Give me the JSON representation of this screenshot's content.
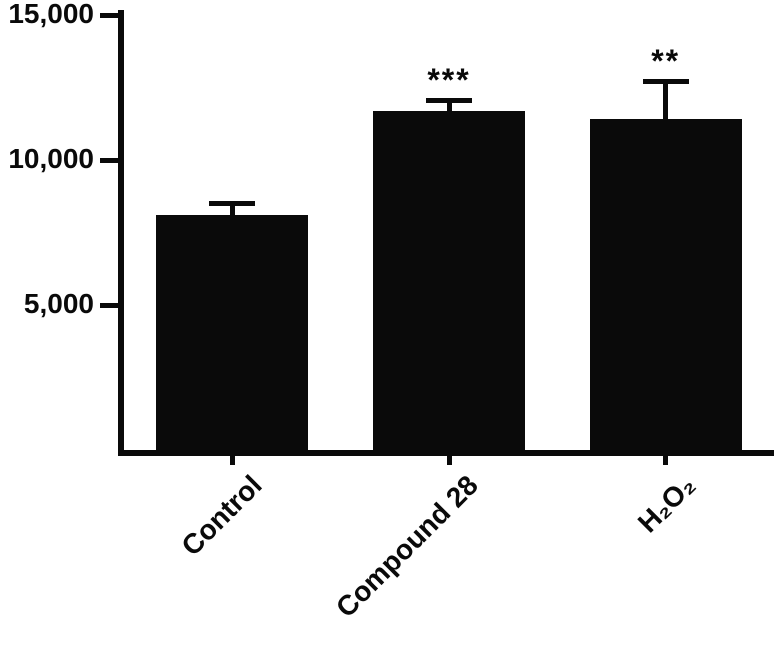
{
  "chart_data": {
    "type": "bar",
    "title": "",
    "xlabel": "",
    "ylabel": "",
    "categories": [
      "Control",
      "Compound 28",
      "H₂O₂"
    ],
    "values": [
      8100,
      11700,
      11400
    ],
    "errors_upper": [
      480,
      450,
      1400
    ],
    "significance": [
      "",
      "***",
      "**"
    ],
    "ylim": [
      0,
      15000
    ],
    "yticks": [
      {
        "value": 5000,
        "label": "5,000"
      },
      {
        "value": 10000,
        "label": "10,000"
      },
      {
        "value": 15000,
        "label": "15,000"
      }
    ],
    "bar_color": "#0a0a0a",
    "axis_color": "#0a0a0a",
    "background": "#ffffff",
    "grid": false,
    "legend": "none",
    "error_bar_style": "upper-cap-only",
    "x_label_rotation_deg": 45
  }
}
